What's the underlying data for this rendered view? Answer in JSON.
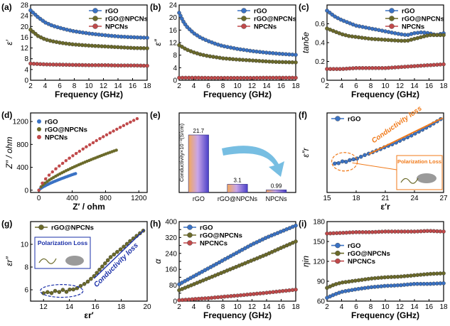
{
  "panel_labels": [
    "(a)",
    "(b)",
    "(c)",
    "(d)",
    "(e)",
    "(f)",
    "(g)",
    "(h)",
    "(i)"
  ],
  "colors": {
    "rgo": "#3a72c4",
    "rgo_npcns": "#6b6a2a",
    "npcns": "#c0494a",
    "orange": "#f07a1a",
    "blue_dark": "#1a2fa8",
    "arrow_blue": "#4aa8d8"
  },
  "chart_data": [
    {
      "id": "a",
      "type": "line",
      "title": "",
      "xlabel": "Frequency (GHz)",
      "ylabel": "ε′",
      "xlim": [
        2,
        18
      ],
      "ylim": [
        0,
        28
      ],
      "xticks": [
        2,
        4,
        6,
        8,
        10,
        12,
        14,
        16,
        18
      ],
      "yticks": [
        0,
        4,
        8,
        12,
        16,
        20,
        24,
        28
      ],
      "legend": "top-right",
      "series": [
        {
          "name": "rGO",
          "key": "rgo",
          "x": [
            2,
            3,
            4,
            5,
            6,
            7,
            8,
            10,
            12,
            14,
            16,
            18
          ],
          "values": [
            26,
            23.5,
            21.5,
            20.3,
            19.5,
            18.8,
            18.2,
            17.4,
            16.8,
            16.3,
            16.0,
            15.8
          ]
        },
        {
          "name": "rGO@NPCNs",
          "key": "rgo_npcns",
          "x": [
            2,
            3,
            4,
            5,
            6,
            7,
            8,
            10,
            12,
            14,
            16,
            18
          ],
          "values": [
            18.8,
            16.5,
            15.2,
            14.5,
            14.0,
            13.6,
            13.3,
            12.9,
            12.6,
            12.3,
            12.0,
            11.9
          ]
        },
        {
          "name": "NPCNs",
          "key": "npcns",
          "x": [
            2,
            4,
            6,
            8,
            10,
            12,
            14,
            16,
            18
          ],
          "values": [
            6.2,
            5.9,
            5.8,
            5.7,
            5.6,
            5.6,
            5.5,
            5.5,
            5.4
          ]
        }
      ]
    },
    {
      "id": "b",
      "type": "line",
      "title": "",
      "xlabel": "Frequency (GHz)",
      "ylabel": "ε″",
      "xlim": [
        2,
        18
      ],
      "ylim": [
        0,
        24
      ],
      "xticks": [
        2,
        4,
        6,
        8,
        10,
        12,
        14,
        16,
        18
      ],
      "yticks": [
        0,
        4,
        8,
        12,
        16,
        20,
        24
      ],
      "legend": "top-right",
      "series": [
        {
          "name": "rGO",
          "key": "rgo",
          "x": [
            2,
            2.5,
            3,
            4,
            5,
            6,
            7,
            8,
            10,
            12,
            14,
            16,
            18
          ],
          "values": [
            21.5,
            19,
            17.2,
            15.0,
            13.5,
            12.5,
            11.6,
            10.9,
            10.0,
            9.3,
            8.8,
            8.4,
            8.1
          ]
        },
        {
          "name": "rGO@NPCNs",
          "key": "rgo_npcns",
          "x": [
            2,
            3,
            4,
            5,
            6,
            8,
            10,
            12,
            14,
            16,
            18
          ],
          "values": [
            11.2,
            9.8,
            8.9,
            8.2,
            7.7,
            7.0,
            6.6,
            6.3,
            6.0,
            5.8,
            5.7
          ]
        },
        {
          "name": "NPCNs",
          "key": "npcns",
          "x": [
            2,
            4,
            6,
            8,
            10,
            12,
            14,
            16,
            18
          ],
          "values": [
            0.8,
            0.8,
            0.75,
            0.75,
            0.75,
            0.75,
            0.8,
            0.8,
            0.8
          ]
        }
      ]
    },
    {
      "id": "c",
      "type": "line",
      "title": "",
      "xlabel": "Frequency (GHz)",
      "ylabel": "tanδe",
      "xlim": [
        2,
        18
      ],
      "ylim": [
        0,
        0.8
      ],
      "xticks": [
        2,
        4,
        6,
        8,
        10,
        12,
        14,
        16,
        18
      ],
      "yticks": [
        0.0,
        0.2,
        0.4,
        0.6
      ],
      "legend": "top-right",
      "series": [
        {
          "name": "rGO",
          "key": "rgo",
          "x": [
            2,
            3,
            4,
            5,
            6,
            8,
            10,
            12,
            13,
            14,
            15,
            16,
            17,
            18
          ],
          "values": [
            0.74,
            0.68,
            0.64,
            0.61,
            0.58,
            0.55,
            0.52,
            0.49,
            0.48,
            0.5,
            0.51,
            0.5,
            0.48,
            0.5
          ]
        },
        {
          "name": "rGO@NPCNs",
          "key": "rgo_npcns",
          "x": [
            2,
            3,
            4,
            5,
            6,
            8,
            10,
            12,
            13,
            14,
            15,
            16,
            17,
            18
          ],
          "values": [
            0.55,
            0.52,
            0.49,
            0.47,
            0.46,
            0.44,
            0.43,
            0.42,
            0.42,
            0.44,
            0.46,
            0.48,
            0.48,
            0.48
          ]
        },
        {
          "name": "NPCNs",
          "key": "npcns",
          "x": [
            2,
            4,
            6,
            8,
            10,
            12,
            14,
            16,
            18
          ],
          "values": [
            0.12,
            0.12,
            0.13,
            0.13,
            0.13,
            0.14,
            0.15,
            0.16,
            0.17
          ]
        }
      ]
    },
    {
      "id": "d",
      "type": "scatter",
      "title": "",
      "xlabel": "Z′ / ohm",
      "ylabel": "Z″ / ohm",
      "xlim": [
        -100,
        1300
      ],
      "ylim": [
        -40,
        1350
      ],
      "xticks": [
        0,
        400,
        800,
        1200
      ],
      "yticks": [
        0,
        400,
        800,
        1200
      ],
      "legend": "top-left",
      "series": [
        {
          "name": "rGO",
          "key": "rgo",
          "curve_end": [
            440,
            290
          ],
          "curve_shape": [
            0.6
          ],
          "count": 26
        },
        {
          "name": "rGO@NPCNs",
          "key": "rgo_npcns",
          "curve_end": [
            930,
            700
          ],
          "curve_shape": [
            0.55
          ],
          "count": 38
        },
        {
          "name": "NPCNs",
          "key": "npcns",
          "curve_end": [
            1180,
            1250
          ],
          "curve_shape": [
            0.55
          ],
          "count": 30
        }
      ]
    },
    {
      "id": "e",
      "type": "bar",
      "title": "",
      "xlabel": "",
      "ylabel": "Conductivity×10⁻²(S/cm)",
      "categories": [
        "rGO",
        "rGO@NPCNs",
        "NPCNs"
      ],
      "values": [
        21.7,
        3.1,
        0.99
      ],
      "labels": [
        "21.7",
        "3.1",
        "0.99"
      ],
      "ylim": [
        0,
        30
      ]
    },
    {
      "id": "f",
      "type": "line",
      "title": "",
      "xlabel": "ε′r",
      "ylabel": "ε″r",
      "xlim": [
        15,
        27
      ],
      "ylim": [
        0,
        22
      ],
      "xticks": [
        15,
        18,
        21,
        24,
        27
      ],
      "yticks": [],
      "legend": "top-left",
      "series": [
        {
          "name": "rGO",
          "key": "rgo",
          "x": [
            15.8,
            16.0,
            16.2,
            16.5,
            16.8,
            17.0,
            17.3,
            17.6,
            17.9,
            18.2,
            18.6,
            19.0,
            19.5,
            20.0,
            20.5,
            21.0,
            21.6,
            22.2,
            22.8,
            23.5,
            24.2,
            25.0,
            25.8,
            26.7
          ],
          "values": [
            8.0,
            8.3,
            8.1,
            8.5,
            8.8,
            8.4,
            8.9,
            9.3,
            9.0,
            9.6,
            10.0,
            10.5,
            10.9,
            11.5,
            12.0,
            12.6,
            13.2,
            13.9,
            14.7,
            15.5,
            16.5,
            17.6,
            18.8,
            20.3
          ]
        }
      ],
      "annotations": {
        "cond": "Conductivity loss",
        "pol": "Polarization Loss"
      }
    },
    {
      "id": "g",
      "type": "line",
      "title": "",
      "xlabel": "εr′",
      "ylabel": "εr″",
      "xlim": [
        11,
        20
      ],
      "ylim": [
        5,
        12
      ],
      "xticks": [
        12,
        14,
        16,
        18,
        20
      ],
      "yticks": [
        6,
        8,
        10
      ],
      "legend": "top-left",
      "series": [
        {
          "name": "rGO@NPCNs",
          "key": "rgo_npcns",
          "x": [
            12.0,
            12.3,
            12.6,
            12.9,
            13.2,
            13.5,
            13.8,
            14.1,
            14.4,
            14.8,
            15.3,
            15.9,
            16.5,
            17.2,
            18.0,
            18.8,
            19.7
          ],
          "values": [
            5.7,
            5.8,
            5.7,
            5.9,
            5.8,
            6.0,
            5.8,
            6.1,
            6.0,
            6.3,
            6.6,
            7.2,
            8.0,
            8.9,
            9.6,
            10.4,
            11.2
          ]
        }
      ],
      "annotations": {
        "cond": "Conductivity loss",
        "pol": "Polarization Loss"
      }
    },
    {
      "id": "h",
      "type": "line",
      "title": "",
      "xlabel": "Frequency (GHz)",
      "ylabel": "α",
      "xlim": [
        2,
        18
      ],
      "ylim": [
        0,
        400
      ],
      "xticks": [
        2,
        4,
        6,
        8,
        10,
        12,
        14,
        16,
        18
      ],
      "yticks": [
        0,
        40,
        80,
        120,
        160,
        200,
        240,
        280,
        320,
        360,
        400
      ],
      "yticklabels": [
        0,
        "",
        80,
        "",
        160,
        "",
        240,
        "",
        320,
        "",
        400
      ],
      "legend": "top-left",
      "series": [
        {
          "name": "rGO",
          "key": "rgo",
          "x": [
            2,
            4,
            6,
            8,
            10,
            12,
            14,
            16,
            18
          ],
          "values": [
            85,
            125,
            165,
            205,
            245,
            285,
            320,
            350,
            380
          ]
        },
        {
          "name": "rGO@NPCNs",
          "key": "rgo_npcns",
          "x": [
            2,
            4,
            6,
            8,
            10,
            12,
            14,
            16,
            18
          ],
          "values": [
            55,
            85,
            115,
            145,
            175,
            205,
            235,
            268,
            300
          ]
        },
        {
          "name": "NPCNCs",
          "key": "npcns",
          "x": [
            2,
            4,
            6,
            8,
            10,
            12,
            14,
            16,
            18
          ],
          "values": [
            5,
            10,
            15,
            22,
            28,
            35,
            42,
            50,
            58
          ]
        }
      ]
    },
    {
      "id": "i",
      "type": "line",
      "title": "",
      "xlabel": "Frequency (GHz)",
      "ylabel": "ηin",
      "xlim": [
        2,
        18
      ],
      "ylim": [
        60,
        180
      ],
      "xticks": [
        2,
        4,
        6,
        8,
        10,
        12,
        14,
        16,
        18
      ],
      "yticks": [
        60,
        90,
        120,
        150,
        180
      ],
      "legend": "center-right",
      "series": [
        {
          "name": "rGO",
          "key": "rgo",
          "x": [
            2,
            3,
            4,
            6,
            8,
            10,
            12,
            14,
            16,
            18
          ],
          "values": [
            65,
            70,
            74,
            78,
            81,
            83,
            84,
            86,
            86,
            87
          ]
        },
        {
          "name": "rGO@NPCNs",
          "key": "rgo_npcns",
          "x": [
            2,
            3,
            4,
            6,
            8,
            10,
            12,
            14,
            16,
            18
          ],
          "values": [
            80,
            85,
            88,
            91,
            94,
            96,
            97,
            99,
            101,
            102
          ]
        },
        {
          "name": "NPCNCs",
          "key": "npcns",
          "x": [
            2,
            4,
            6,
            8,
            10,
            12,
            14,
            16,
            18
          ],
          "values": [
            162,
            163,
            164,
            164,
            165,
            165,
            165,
            166,
            165
          ]
        }
      ]
    }
  ]
}
